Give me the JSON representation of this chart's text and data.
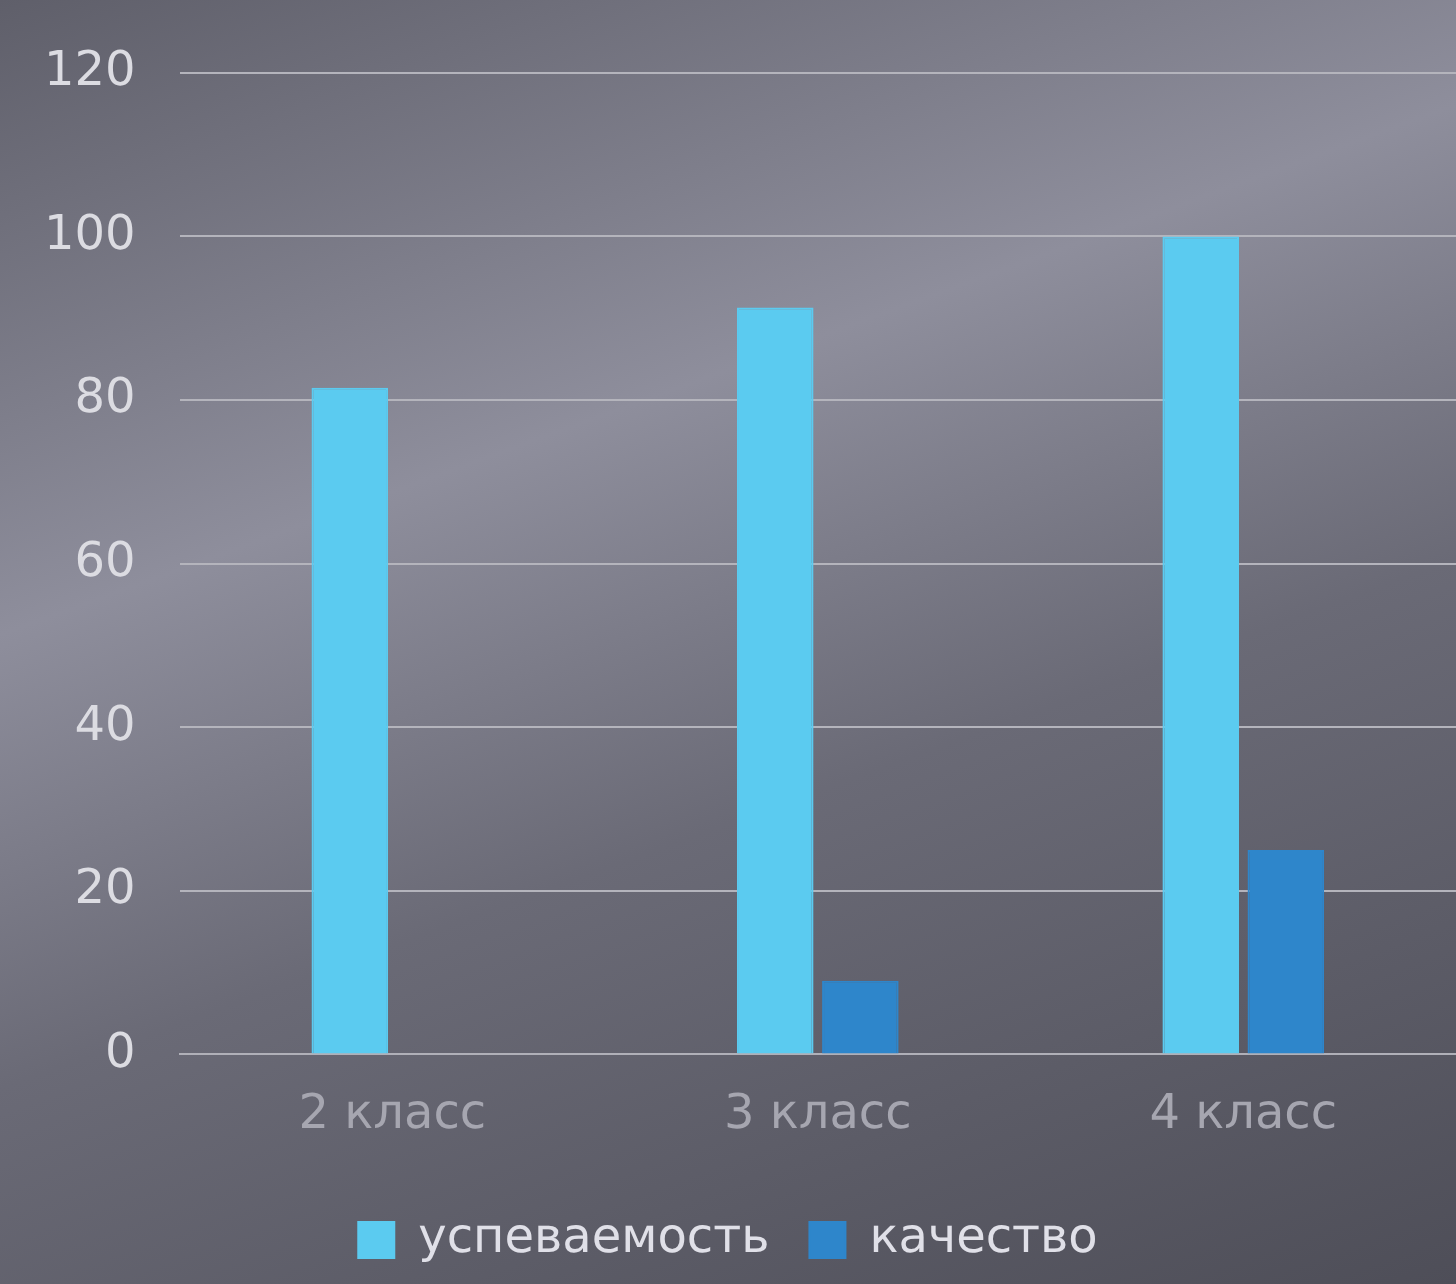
{
  "chart_data": {
    "type": "bar",
    "categories": [
      "2 класс",
      "3 класс",
      "4 класс"
    ],
    "series": [
      {
        "name": "успеваемость",
        "color": "#5bcbf0",
        "values": [
          81.5,
          91.3,
          100
        ]
      },
      {
        "name": "качество",
        "color": "#2e86cb",
        "values": [
          0,
          9,
          25
        ]
      }
    ],
    "ylim": [
      0,
      120
    ],
    "yticks": [
      0,
      20,
      40,
      60,
      80,
      100,
      120
    ],
    "grid": "y",
    "legend": "bottom"
  }
}
